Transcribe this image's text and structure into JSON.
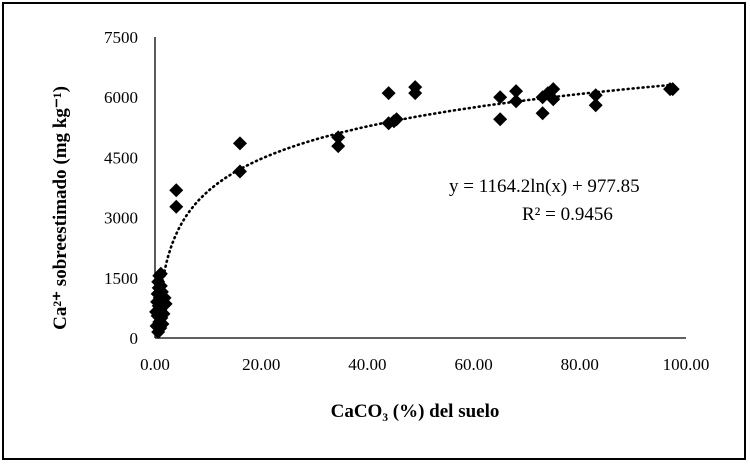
{
  "chart_data": {
    "type": "scatter",
    "xlabel": "CaCO₃ (%) del suelo",
    "ylabel": "Ca²⁺ sobreestimado (mg kg⁻¹)",
    "x_ticks": [
      "0.00",
      "20.00",
      "40.00",
      "60.00",
      "80.00",
      "100.00"
    ],
    "y_ticks": [
      "0",
      "1500",
      "3000",
      "4500",
      "6000",
      "7500"
    ],
    "xlim": [
      0,
      100
    ],
    "ylim": [
      0,
      7500
    ],
    "grid": false,
    "marker": "diamond",
    "marker_color": "#000000",
    "trendline": {
      "type": "log",
      "style": "dotted",
      "a": 1164.2,
      "b": 977.85,
      "equation": "y = 1164.2ln(x) + 977.85",
      "r2": "R² = 0.9456"
    },
    "points": [
      [
        0.2,
        650
      ],
      [
        0.3,
        300
      ],
      [
        0.4,
        900
      ],
      [
        0.5,
        550
      ],
      [
        0.5,
        1100
      ],
      [
        0.6,
        150
      ],
      [
        0.6,
        1400
      ],
      [
        0.7,
        800
      ],
      [
        0.7,
        1250
      ],
      [
        0.8,
        400
      ],
      [
        0.8,
        1550
      ],
      [
        0.9,
        1000
      ],
      [
        1.0,
        250
      ],
      [
        1.0,
        700
      ],
      [
        1.1,
        1300
      ],
      [
        1.1,
        1600
      ],
      [
        1.2,
        500
      ],
      [
        1.2,
        950
      ],
      [
        1.3,
        1150
      ],
      [
        1.4,
        350
      ],
      [
        1.5,
        850
      ],
      [
        1.6,
        600
      ],
      [
        1.8,
        1000
      ],
      [
        2.0,
        850
      ],
      [
        4.0,
        3680
      ],
      [
        4.0,
        3270
      ],
      [
        16.0,
        4850
      ],
      [
        16.0,
        4150
      ],
      [
        34.5,
        5000
      ],
      [
        34.5,
        4780
      ],
      [
        44.0,
        6100
      ],
      [
        44.0,
        5350
      ],
      [
        45.0,
        5400
      ],
      [
        45.5,
        5450
      ],
      [
        49.0,
        6250
      ],
      [
        49.0,
        6100
      ],
      [
        65.0,
        6000
      ],
      [
        65.0,
        5450
      ],
      [
        68.0,
        6150
      ],
      [
        68.0,
        5900
      ],
      [
        73.0,
        6000
      ],
      [
        73.0,
        5600
      ],
      [
        74.0,
        6100
      ],
      [
        75.0,
        6200
      ],
      [
        75.0,
        5950
      ],
      [
        83.0,
        6050
      ],
      [
        83.0,
        5800
      ],
      [
        97.0,
        6200
      ],
      [
        97.5,
        6200
      ]
    ]
  }
}
